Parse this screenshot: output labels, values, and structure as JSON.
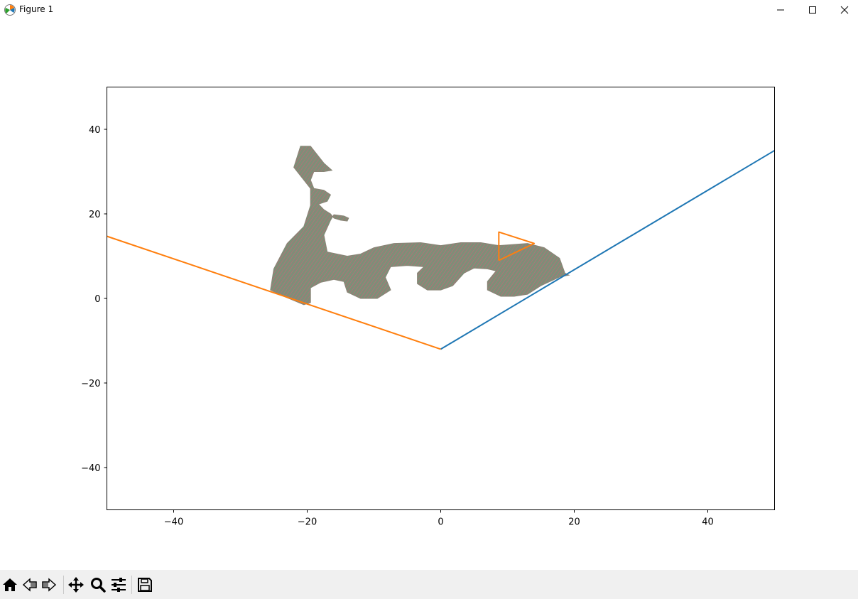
{
  "window": {
    "title": "Figure 1",
    "controls": [
      "minimize-icon",
      "maximize-icon",
      "close-icon"
    ]
  },
  "toolbar": {
    "buttons": [
      "home-icon",
      "back-arrow-icon",
      "forward-arrow-icon",
      "pan-move-icon",
      "zoom-magnifier-icon",
      "configure-subplots-icon",
      "save-floppy-icon"
    ]
  },
  "chart_data": {
    "type": "line",
    "title": "",
    "xlabel": "",
    "ylabel": "",
    "xlim": [
      -50,
      50
    ],
    "ylim": [
      -50,
      50
    ],
    "xticks": [
      -40,
      -20,
      0,
      20,
      40
    ],
    "xtick_labels": [
      "−40",
      "−20",
      "0",
      "20",
      "40"
    ],
    "yticks": [
      40,
      20,
      0,
      -20,
      -40
    ],
    "ytick_labels": [
      "40",
      "20",
      "0",
      "−20",
      "−40"
    ],
    "grid": false,
    "series": [
      {
        "color": "#1f77b4",
        "x": [
          0,
          50
        ],
        "y": [
          -12,
          35
        ]
      },
      {
        "color": "#ff7f0e",
        "x": [
          -50,
          0
        ],
        "y": [
          14.7,
          -12
        ]
      },
      {
        "color": "#ff7f0e",
        "x": [
          8.7,
          8.7,
          14.0,
          8.7
        ],
        "y": [
          9.0,
          15.7,
          13.0,
          9.0
        ]
      }
    ],
    "filled_shape": {
      "color": "#8a8577",
      "outline": [
        [
          -25.5,
          2
        ],
        [
          -25,
          7
        ],
        [
          -23,
          13
        ],
        [
          -20.5,
          17
        ],
        [
          -19.5,
          22
        ],
        [
          -19.5,
          26
        ],
        [
          -22,
          31
        ],
        [
          -21,
          36
        ],
        [
          -19.5,
          36
        ],
        [
          -17.5,
          32
        ],
        [
          -16.3,
          30.3
        ],
        [
          -17.5,
          30.0
        ],
        [
          -19.0,
          30
        ],
        [
          -19.5,
          28
        ],
        [
          -19,
          26
        ],
        [
          -17.5,
          25.6
        ],
        [
          -16.5,
          24.5
        ],
        [
          -17,
          23
        ],
        [
          -18.3,
          22.3
        ],
        [
          -17.5,
          21
        ],
        [
          -16.5,
          20
        ],
        [
          -16,
          19
        ],
        [
          -15,
          18.5
        ],
        [
          -14,
          18.3
        ],
        [
          -13.8,
          19.0
        ],
        [
          -14.5,
          19.5
        ],
        [
          -16,
          19.8
        ],
        [
          -16.5,
          18.5
        ],
        [
          -17.5,
          15
        ],
        [
          -17,
          11
        ],
        [
          -14,
          10
        ],
        [
          -12,
          10.5
        ],
        [
          -10,
          12
        ],
        [
          -7,
          13
        ],
        [
          -3,
          13.2
        ],
        [
          0,
          12.5
        ],
        [
          3,
          13.2
        ],
        [
          6,
          13.2
        ],
        [
          8.7,
          12.5
        ],
        [
          13,
          13
        ],
        [
          15.5,
          12
        ],
        [
          17.8,
          9.5
        ],
        [
          18.6,
          6
        ],
        [
          19.2,
          5.5
        ],
        [
          18,
          5.2
        ],
        [
          15,
          3
        ],
        [
          13,
          1
        ],
        [
          11,
          0.5
        ],
        [
          9,
          0.5
        ],
        [
          7,
          2
        ],
        [
          7,
          4
        ],
        [
          8.3,
          6.5
        ],
        [
          7,
          7
        ],
        [
          5,
          7.2
        ],
        [
          3.5,
          6
        ],
        [
          1.8,
          3
        ],
        [
          0,
          2
        ],
        [
          -2,
          2
        ],
        [
          -3.5,
          3.5
        ],
        [
          -3.5,
          6
        ],
        [
          -2.5,
          7.5
        ],
        [
          -5,
          7.8
        ],
        [
          -7.5,
          7.5
        ],
        [
          -8.3,
          5
        ],
        [
          -7.5,
          2
        ],
        [
          -9.5,
          0
        ],
        [
          -12,
          0
        ],
        [
          -14,
          1.5
        ],
        [
          -14.5,
          4
        ],
        [
          -16,
          4.5
        ],
        [
          -18,
          3.8
        ],
        [
          -19.5,
          2.5
        ],
        [
          -19.5,
          -1
        ],
        [
          -20.5,
          -1.5
        ],
        [
          -23.5,
          0.5
        ]
      ]
    }
  }
}
